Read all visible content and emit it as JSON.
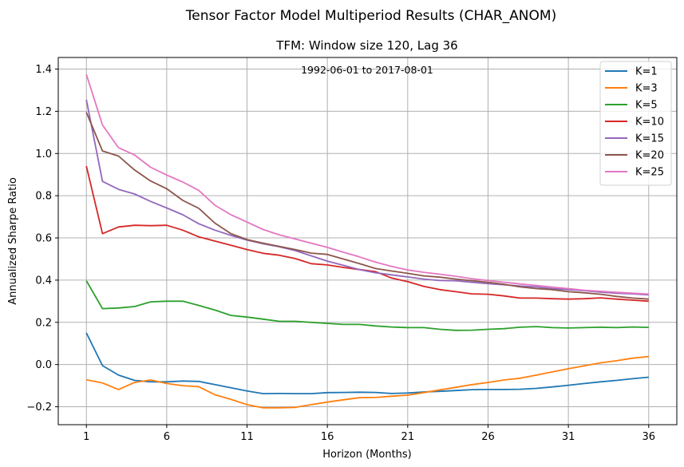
{
  "suptitle": "Tensor Factor Model Multiperiod Results (CHAR_ANOM)",
  "chart_data": {
    "type": "line",
    "title": "TFM: Window size 120, Lag 36",
    "annotation": "1992-06-01 to 2017-08-01",
    "xlabel": "Horizon (Months)",
    "ylabel": "Annualized Sharpe Ratio",
    "xlim": [
      -0.75,
      37.75
    ],
    "ylim": [
      -0.285,
      1.455
    ],
    "xticks": [
      1,
      6,
      11,
      16,
      21,
      26,
      31,
      36
    ],
    "xtick_labels": [
      "1",
      "6",
      "11",
      "16",
      "21",
      "26",
      "31",
      "36"
    ],
    "yticks": [
      -0.2,
      0.0,
      0.2,
      0.4,
      0.6,
      0.8,
      1.0,
      1.2,
      1.4
    ],
    "ytick_labels": [
      "−0.2",
      "0.0",
      "0.2",
      "0.4",
      "0.6",
      "0.8",
      "1.0",
      "1.2",
      "1.4"
    ],
    "grid": true,
    "legend_position": "top-right",
    "x": [
      1,
      2,
      3,
      4,
      5,
      6,
      7,
      8,
      9,
      10,
      11,
      12,
      13,
      14,
      15,
      16,
      17,
      18,
      19,
      20,
      21,
      22,
      23,
      24,
      25,
      26,
      27,
      28,
      29,
      30,
      31,
      32,
      33,
      34,
      35,
      36
    ],
    "series": [
      {
        "name": "K=1",
        "color": "#1f77b4",
        "values": [
          0.15,
          -0.005,
          -0.05,
          -0.075,
          -0.082,
          -0.082,
          -0.078,
          -0.08,
          -0.095,
          -0.11,
          -0.125,
          -0.138,
          -0.137,
          -0.138,
          -0.138,
          -0.133,
          -0.132,
          -0.131,
          -0.132,
          -0.137,
          -0.135,
          -0.13,
          -0.127,
          -0.123,
          -0.119,
          -0.118,
          -0.118,
          -0.117,
          -0.113,
          -0.106,
          -0.098,
          -0.09,
          -0.082,
          -0.075,
          -0.067,
          -0.06
        ]
      },
      {
        "name": "K=3",
        "color": "#ff7f0e",
        "values": [
          -0.072,
          -0.087,
          -0.118,
          -0.085,
          -0.073,
          -0.09,
          -0.1,
          -0.105,
          -0.143,
          -0.165,
          -0.19,
          -0.205,
          -0.205,
          -0.203,
          -0.19,
          -0.178,
          -0.167,
          -0.157,
          -0.156,
          -0.15,
          -0.145,
          -0.133,
          -0.12,
          -0.108,
          -0.095,
          -0.085,
          -0.073,
          -0.065,
          -0.05,
          -0.035,
          -0.02,
          -0.006,
          0.008,
          0.018,
          0.03,
          0.038
        ]
      },
      {
        "name": "K=5",
        "color": "#2ca02c",
        "values": [
          0.397,
          0.265,
          0.268,
          0.275,
          0.297,
          0.3,
          0.3,
          0.28,
          0.258,
          0.233,
          0.225,
          0.215,
          0.205,
          0.205,
          0.2,
          0.195,
          0.19,
          0.19,
          0.183,
          0.178,
          0.175,
          0.175,
          0.167,
          0.162,
          0.163,
          0.167,
          0.17,
          0.177,
          0.18,
          0.175,
          0.173,
          0.175,
          0.177,
          0.175,
          0.178,
          0.176
        ]
      },
      {
        "name": "K=10",
        "color": "#d62728",
        "values": [
          0.94,
          0.62,
          0.652,
          0.66,
          0.658,
          0.66,
          0.637,
          0.605,
          0.585,
          0.565,
          0.545,
          0.527,
          0.518,
          0.502,
          0.478,
          0.472,
          0.46,
          0.45,
          0.44,
          0.41,
          0.393,
          0.37,
          0.355,
          0.345,
          0.335,
          0.333,
          0.325,
          0.315,
          0.315,
          0.312,
          0.31,
          0.312,
          0.316,
          0.31,
          0.305,
          0.3
        ]
      },
      {
        "name": "K=15",
        "color": "#9467bd",
        "values": [
          1.255,
          0.868,
          0.83,
          0.808,
          0.773,
          0.742,
          0.71,
          0.667,
          0.637,
          0.612,
          0.59,
          0.572,
          0.558,
          0.54,
          0.515,
          0.49,
          0.47,
          0.45,
          0.435,
          0.425,
          0.415,
          0.405,
          0.398,
          0.397,
          0.39,
          0.383,
          0.378,
          0.372,
          0.368,
          0.36,
          0.355,
          0.35,
          0.343,
          0.338,
          0.335,
          0.33
        ]
      },
      {
        "name": "K=20",
        "color": "#8c564b",
        "values": [
          1.195,
          1.012,
          0.988,
          0.922,
          0.87,
          0.833,
          0.778,
          0.74,
          0.67,
          0.62,
          0.592,
          0.575,
          0.56,
          0.545,
          0.528,
          0.522,
          0.5,
          0.478,
          0.455,
          0.443,
          0.432,
          0.42,
          0.414,
          0.405,
          0.397,
          0.39,
          0.38,
          0.368,
          0.36,
          0.355,
          0.345,
          0.34,
          0.333,
          0.323,
          0.315,
          0.31
        ]
      },
      {
        "name": "K=25",
        "color": "#e377c2",
        "values": [
          1.375,
          1.135,
          1.027,
          0.993,
          0.935,
          0.898,
          0.865,
          0.825,
          0.755,
          0.71,
          0.675,
          0.64,
          0.615,
          0.595,
          0.575,
          0.555,
          0.532,
          0.51,
          0.485,
          0.465,
          0.448,
          0.437,
          0.428,
          0.418,
          0.407,
          0.398,
          0.39,
          0.382,
          0.375,
          0.367,
          0.36,
          0.352,
          0.347,
          0.342,
          0.338,
          0.334
        ]
      }
    ]
  }
}
